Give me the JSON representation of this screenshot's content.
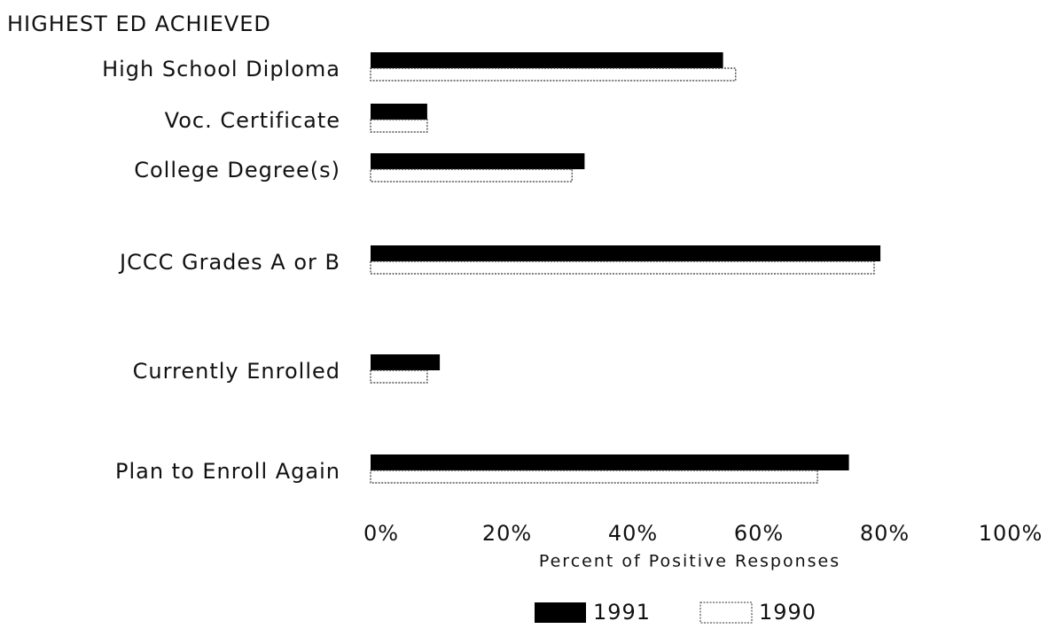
{
  "chart_data": {
    "type": "barh",
    "group_label": "HIGHEST ED ACHIEVED",
    "categories": [
      "High School Diploma",
      "Voc. Certificate",
      "College Degree(s)",
      "JCCC Grades A or B",
      "Currently Enrolled",
      "Plan to Enroll Again"
    ],
    "series": [
      {
        "name": "1991",
        "color": "#000000",
        "values": [
          56,
          9,
          34,
          81,
          11,
          76
        ]
      },
      {
        "name": "1990",
        "color": "#ffffff",
        "values": [
          58,
          9,
          32,
          80,
          9,
          71
        ]
      }
    ],
    "xlabel": "Percent of Positive Responses",
    "xlim": [
      0,
      100
    ],
    "xticks": [
      {
        "value": 0,
        "label": "0%"
      },
      {
        "value": 20,
        "label": "20%"
      },
      {
        "value": 40,
        "label": "40%"
      },
      {
        "value": 60,
        "label": "60%"
      },
      {
        "value": 80,
        "label": "80%"
      },
      {
        "value": 100,
        "label": "100%"
      }
    ],
    "legend": "bottom"
  }
}
